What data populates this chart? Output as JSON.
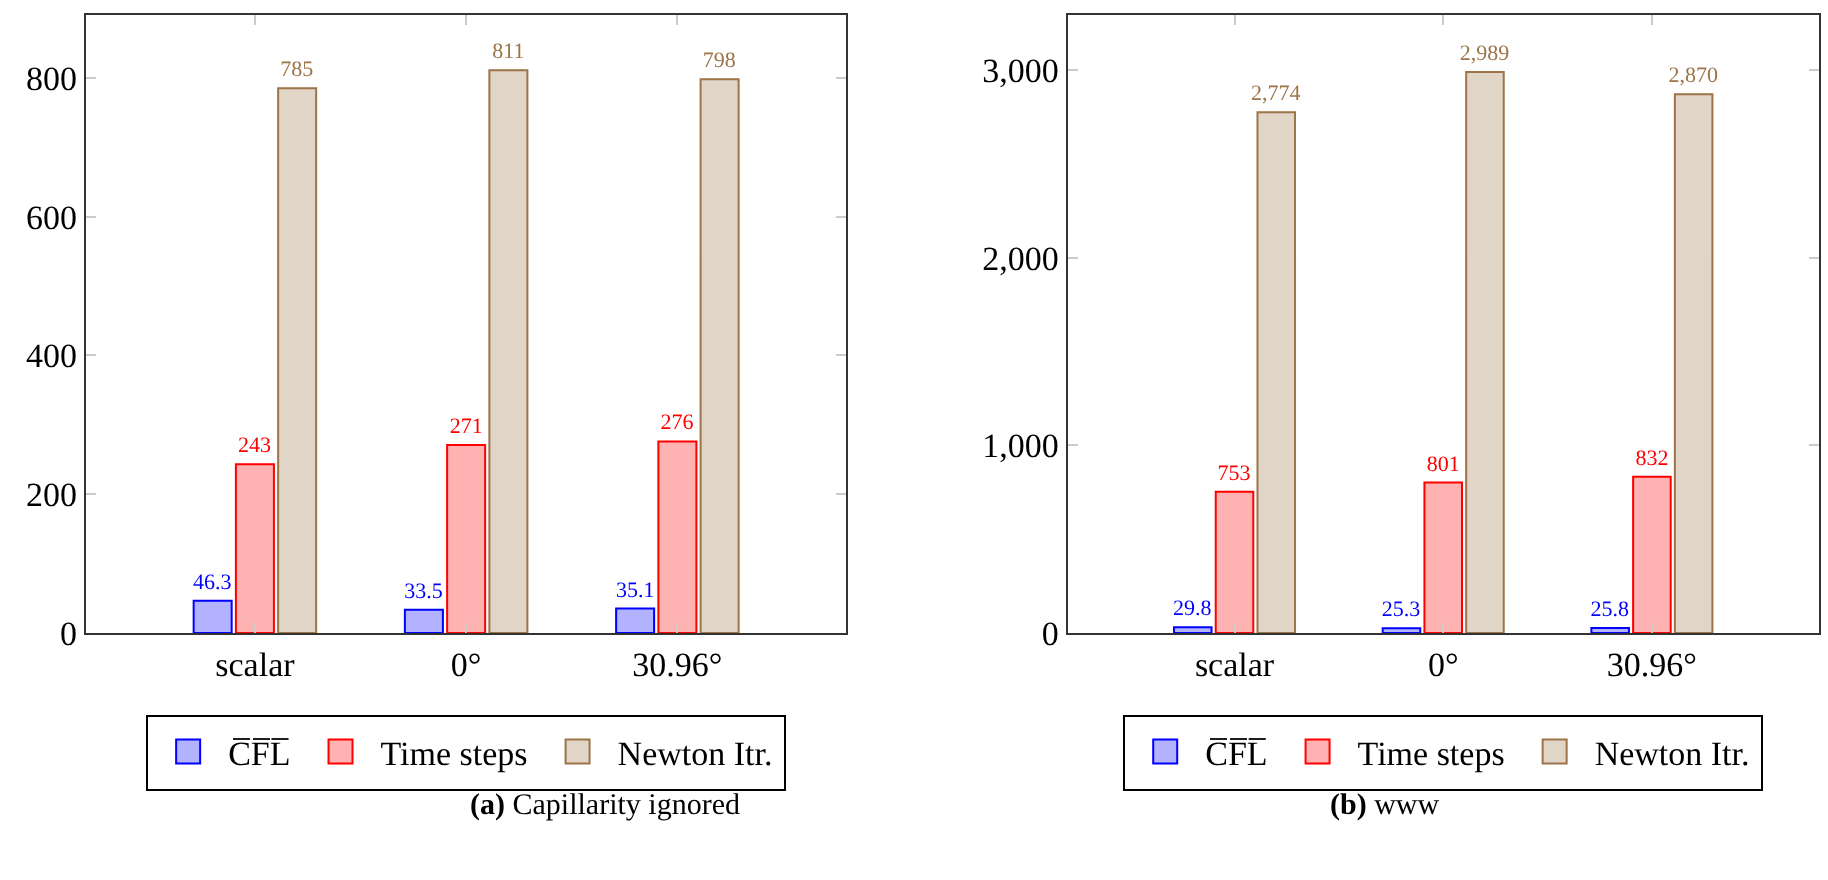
{
  "chart_data": [
    {
      "type": "bar",
      "categories": [
        "scalar",
        "0°",
        "30.96°"
      ],
      "ylim": [
        0,
        890
      ],
      "yticks": [
        0,
        200,
        400,
        600,
        800
      ],
      "legend": "bottom",
      "data_labels": true,
      "annotations": [
        "(a) Capillarity ignored"
      ],
      "series": [
        {
          "name": "C̅F̅L̅",
          "color": "#0000ff",
          "values": [
            46.3,
            33.5,
            35.1
          ]
        },
        {
          "name": "Time steps",
          "color": "#ff0000",
          "values": [
            243,
            271,
            276
          ]
        },
        {
          "name": "Newton Itr.",
          "color": "#9c7448",
          "values": [
            785,
            811,
            798
          ]
        }
      ]
    },
    {
      "type": "bar",
      "categories": [
        "scalar",
        "0°",
        "30.96°"
      ],
      "ylim": [
        0,
        3290
      ],
      "yticks": [
        0,
        {
          "value": 1000,
          "label": "1,000"
        },
        {
          "value": 2000,
          "label": "2,000"
        },
        {
          "value": 3000,
          "label": "3,000"
        }
      ],
      "legend": "bottom",
      "annotations": [
        "(b) www"
      ],
      "series": [
        {
          "name": "C̅F̅L̅",
          "color": "#0000ff",
          "values": [
            29.8,
            25.3,
            25.8
          ],
          "value_labels": [
            "29.8",
            "25.3",
            "25.8"
          ]
        },
        {
          "name": "Time steps",
          "color": "#ff0000",
          "values": [
            753,
            801,
            832
          ],
          "value_labels": [
            "753",
            "801",
            "832"
          ]
        },
        {
          "name": "Newton Itr.",
          "color": "#9c7448",
          "values": [
            2774,
            2989,
            2870
          ],
          "value_labels": [
            "2,774",
            "2,989",
            "2,870"
          ]
        }
      ]
    }
  ]
}
